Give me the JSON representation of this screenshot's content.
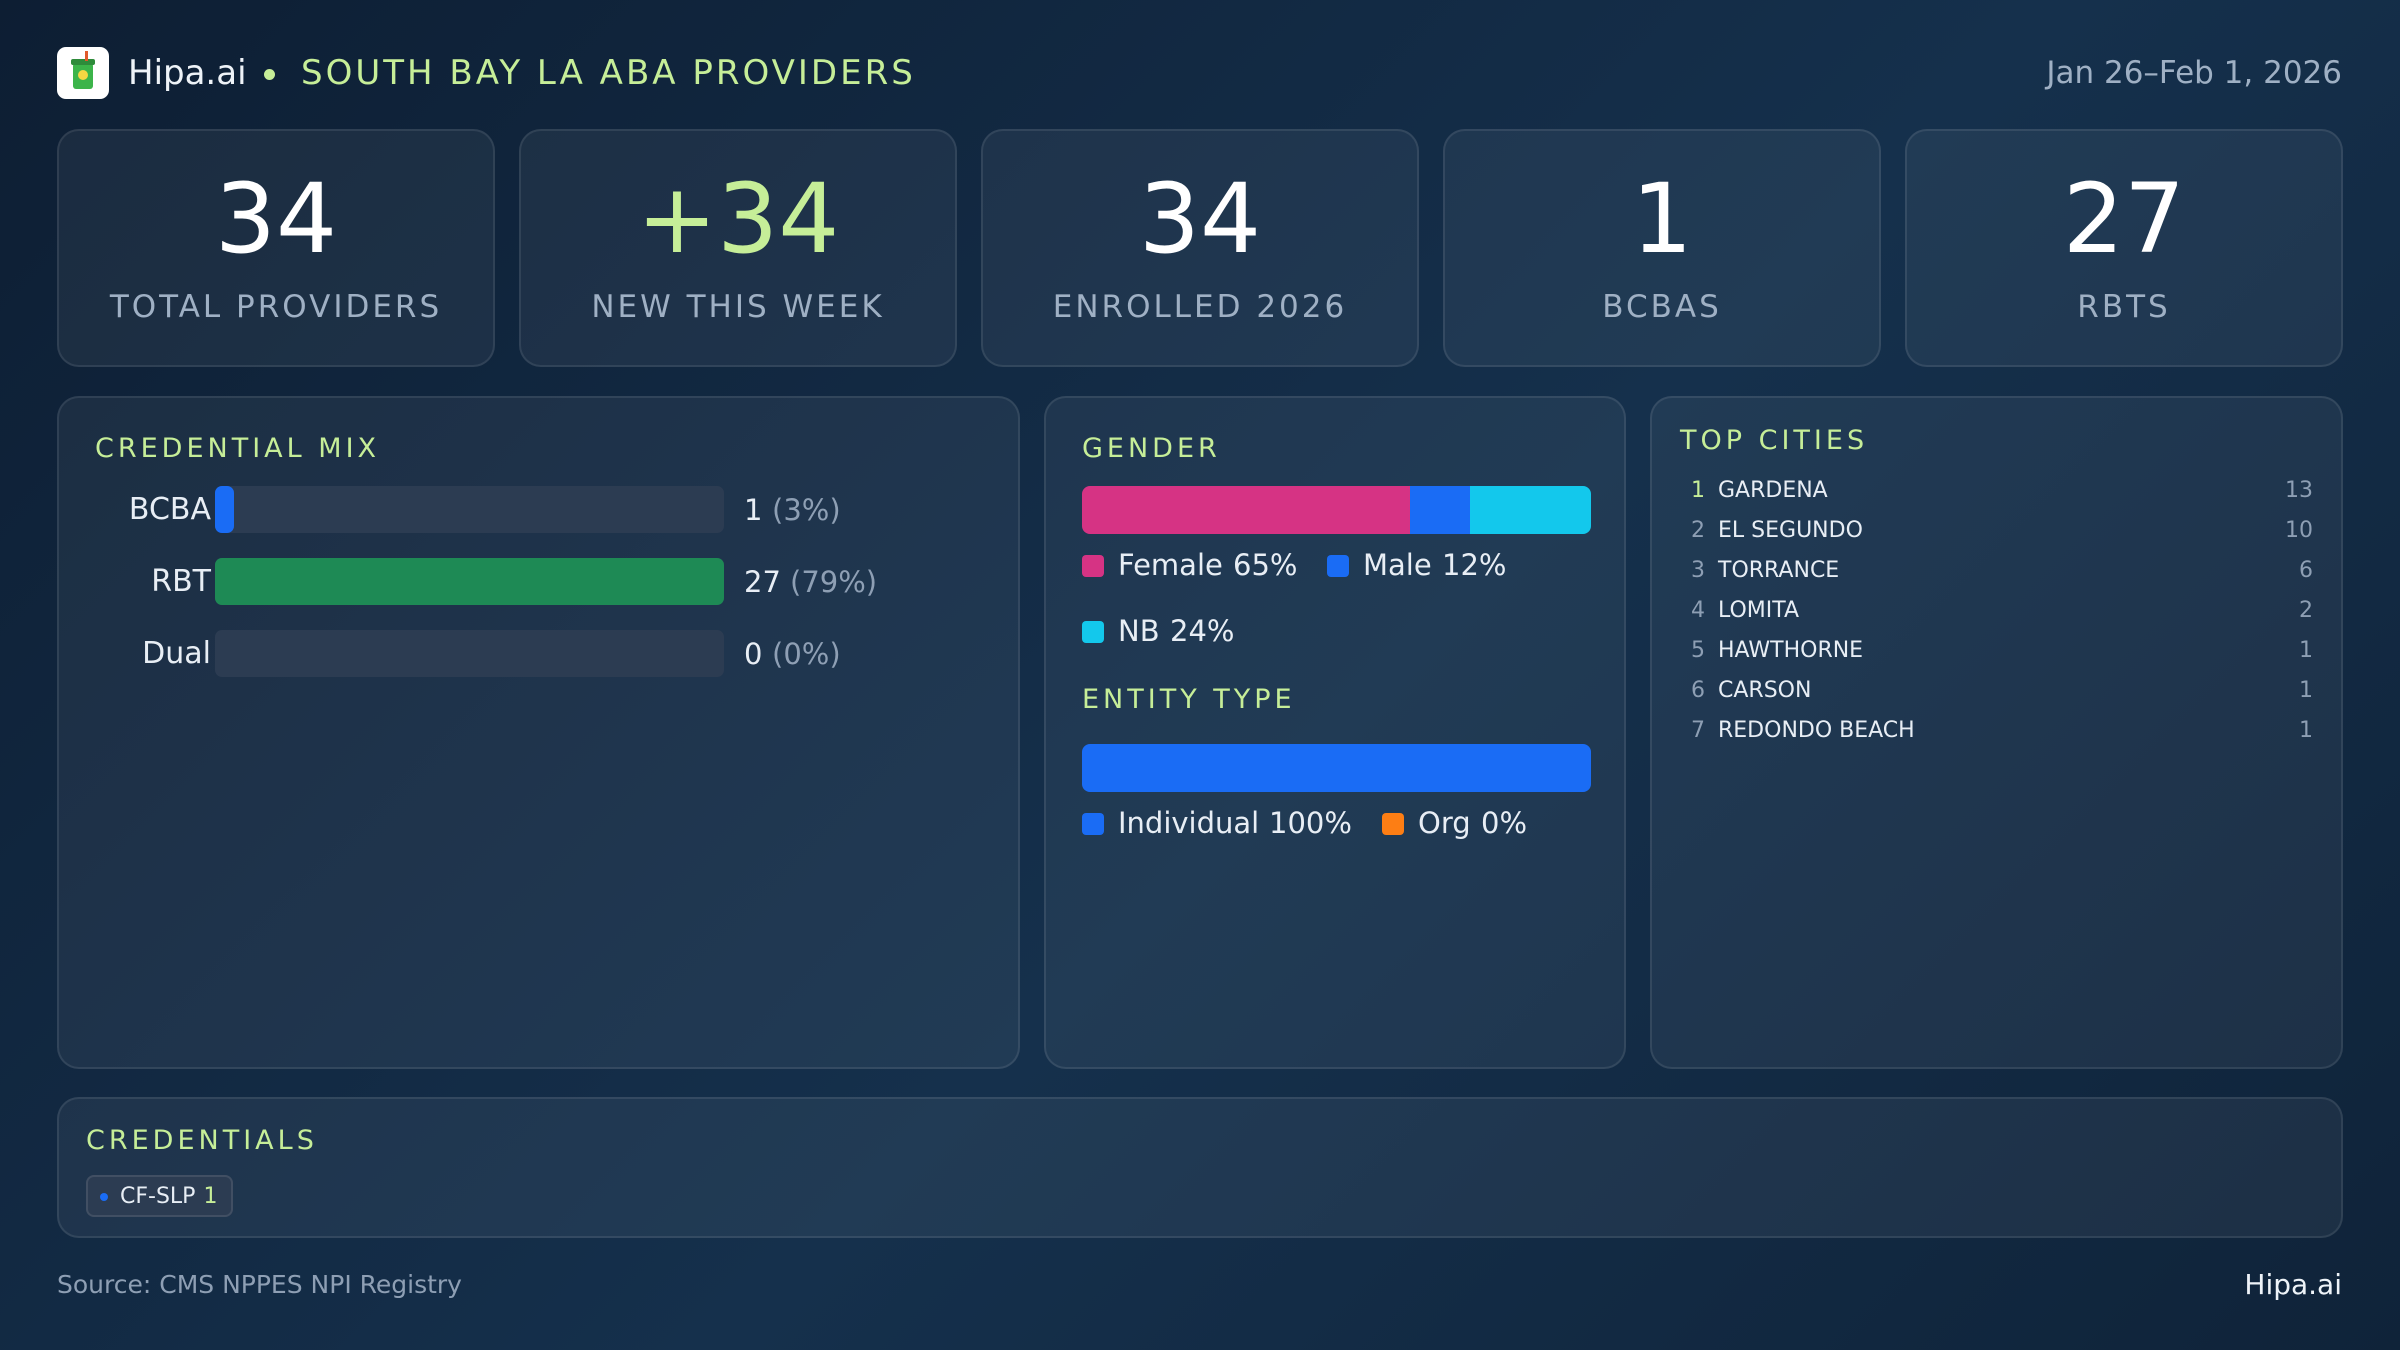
{
  "header": {
    "brand": "Hipa.ai",
    "title": "SOUTH BAY LA ABA PROVIDERS",
    "date_range": "Jan 26–Feb 1, 2026"
  },
  "kpis": [
    {
      "value": 34,
      "label": "TOTAL PROVIDERS"
    },
    {
      "value": "+34",
      "label": "NEW THIS WEEK",
      "color": "#c6ee98"
    },
    {
      "value": 34,
      "label": "ENROLLED 2026"
    },
    {
      "value": 1,
      "label": "BCBAS"
    },
    {
      "value": 27,
      "label": "RBTS"
    }
  ],
  "credential_mix": {
    "title": "CREDENTIAL MIX",
    "rows": [
      {
        "label": "BCBA",
        "count": 1,
        "percent": 3,
        "percent_label": "(3%)",
        "color": "#1a6cf5"
      },
      {
        "label": "RBT",
        "count": 27,
        "percent": 79,
        "percent_label": "(79%)",
        "color": "#1e8a55"
      },
      {
        "label": "Dual",
        "count": 0,
        "percent": 0,
        "percent_label": "(0%)",
        "color": "#8a5cf6"
      }
    ]
  },
  "gender": {
    "title": "GENDER",
    "segments": [
      {
        "name": "Female",
        "value": 65,
        "value_label": "65%",
        "color": "#d63384"
      },
      {
        "name": "Male",
        "value": 12,
        "value_label": "12%",
        "color": "#1a6cf5"
      },
      {
        "name": "NB",
        "value": 24,
        "value_label": "24%",
        "color": "#13c8ec"
      }
    ]
  },
  "entity_type": {
    "title": "ENTITY TYPE",
    "segments": [
      {
        "name": "Individual",
        "value": 100,
        "value_label": "100%",
        "color": "#1a6cf5"
      },
      {
        "name": "Org",
        "value": 0,
        "value_label": "0%",
        "color": "#fd7e14"
      }
    ]
  },
  "top_cities": {
    "title": "TOP CITIES",
    "rows": [
      {
        "rank": 1,
        "city": "GARDENA",
        "count": 13
      },
      {
        "rank": 2,
        "city": "EL SEGUNDO",
        "count": 10
      },
      {
        "rank": 3,
        "city": "TORRANCE",
        "count": 6
      },
      {
        "rank": 4,
        "city": "LOMITA",
        "count": 2
      },
      {
        "rank": 5,
        "city": "HAWTHORNE",
        "count": 1
      },
      {
        "rank": 6,
        "city": "CARSON",
        "count": 1
      },
      {
        "rank": 7,
        "city": "REDONDO BEACH",
        "count": 1
      }
    ]
  },
  "credentials": {
    "title": "CREDENTIALS",
    "items": [
      {
        "label": "CF-SLP",
        "count": 1
      }
    ]
  },
  "footer": {
    "source": "Source: CMS NPPES NPI Registry",
    "brand": "Hipa.ai"
  }
}
